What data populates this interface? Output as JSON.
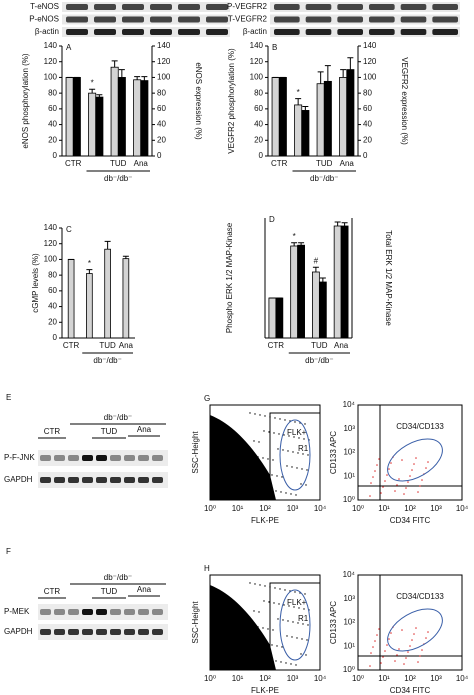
{
  "chart_data": [
    {
      "type": "bar",
      "letter": "A",
      "ylabel": "eNOS phosphorylation (%)",
      "y2label": "eNOS expression (%)",
      "categories": [
        "CTR",
        null,
        "TUD",
        "Ana"
      ],
      "group_label": "db⁻/db⁻",
      "series": [
        {
          "color": "#d4d4d4",
          "values": [
            100,
            80,
            113,
            97
          ],
          "errors": [
            0,
            5,
            8,
            4
          ]
        },
        {
          "color": "#000000",
          "axis": "y2",
          "values": [
            100,
            75,
            100,
            96
          ],
          "errors": [
            0,
            3,
            10,
            5
          ]
        }
      ],
      "ylim": [
        0,
        140
      ],
      "yticks": [
        0,
        20,
        40,
        60,
        80,
        100,
        120,
        140
      ],
      "y2lim": [
        0,
        140
      ],
      "y2ticks": [
        0,
        20,
        40,
        60,
        80,
        100,
        120,
        140
      ],
      "annotations": [
        {
          "text": "*",
          "series": 0,
          "index": 1
        }
      ]
    },
    {
      "type": "bar",
      "letter": "B",
      "ylabel": "VEGFR2 phosphorylation (%)",
      "y2label": "VEGFR2 expression (%)",
      "categories": [
        "CTR",
        null,
        "TUD",
        "Ana"
      ],
      "group_label": "db⁻/db⁻",
      "series": [
        {
          "color": "#d4d4d4",
          "values": [
            100,
            65,
            92,
            100
          ],
          "errors": [
            0,
            8,
            15,
            10
          ]
        },
        {
          "color": "#000000",
          "axis": "y2",
          "values": [
            100,
            58,
            95,
            110
          ],
          "errors": [
            0,
            5,
            20,
            15
          ]
        }
      ],
      "ylim": [
        0,
        140
      ],
      "yticks": [
        0,
        20,
        40,
        60,
        80,
        100,
        120,
        140
      ],
      "y2lim": [
        0,
        140
      ],
      "y2ticks": [
        0,
        20,
        40,
        60,
        80,
        100,
        120,
        140
      ],
      "annotations": [
        {
          "text": "*",
          "series": 0,
          "index": 1
        }
      ]
    },
    {
      "type": "bar",
      "letter": "C",
      "ylabel": "cGMP levels (%)",
      "categories": [
        "CTR",
        null,
        "TUD",
        "Ana"
      ],
      "group_label": "db⁻/db⁻",
      "series": [
        {
          "color": "#d4d4d4",
          "values": [
            100,
            82,
            113,
            101
          ],
          "errors": [
            0,
            5,
            10,
            3
          ]
        }
      ],
      "ylim": [
        0,
        140
      ],
      "yticks": [
        0,
        20,
        40,
        60,
        80,
        100,
        120,
        140
      ],
      "annotations": [
        {
          "text": "*",
          "series": 0,
          "index": 1
        }
      ]
    },
    {
      "type": "bar",
      "letter": "D",
      "ylabel": "Phospho ERK 1/2 MAP-Kinase",
      "y2label": "Total ERK 1/2 MAP-Kinase",
      "categories": [
        "CTR",
        null,
        "TUD",
        "Ana"
      ],
      "group_label": "db⁻/db⁻",
      "series": [
        {
          "color": "#d4d4d4",
          "values": [
            100,
            230,
            165,
            280
          ],
          "errors": [
            0,
            8,
            12,
            10
          ]
        },
        {
          "color": "#000000",
          "axis": "y2",
          "values": [
            100,
            232,
            140,
            280
          ],
          "errors": [
            0,
            6,
            10,
            8
          ]
        }
      ],
      "ylim": [
        0,
        300
      ],
      "y2lim": [
        0,
        300
      ],
      "annotations": [
        {
          "text": "*",
          "series": 0,
          "index": 1
        },
        {
          "text": "#",
          "series": 0,
          "index": 2
        }
      ]
    }
  ],
  "top_blots": [
    {
      "labels": [
        "T-eNOS",
        "P-eNOS",
        "β-actin"
      ]
    },
    {
      "labels": [
        "P-VEGFR2",
        "T-VEGFR2",
        "β-actin"
      ]
    }
  ],
  "blots": [
    {
      "letter": "E",
      "groups": [
        "CTR",
        "db⁻/db⁻",
        "TUD",
        "Ana"
      ],
      "rows": [
        "P-F-JNK",
        "GAPDH"
      ]
    },
    {
      "letter": "F",
      "groups": [
        "CTR",
        "db⁻/db⁻",
        "TUD",
        "Ana"
      ],
      "rows": [
        "P-MEK",
        "GAPDH"
      ]
    }
  ],
  "flow": [
    {
      "letter": "G",
      "scatter": {
        "y_label": "SSC-Height",
        "x_label": "FLK-PE",
        "gate_labels": [
          "FLK+",
          "R1"
        ],
        "xticks": [
          "10⁰",
          "10¹",
          "10²",
          "10³",
          "10⁴"
        ]
      },
      "dot_plot": {
        "y_label": "CD133 APC",
        "x_label": "CD34 FITC",
        "gate_label": "CD34/CD133",
        "ticks": [
          "10⁰",
          "10¹",
          "10²",
          "10³",
          "10⁴"
        ]
      }
    },
    {
      "letter": "H",
      "scatter": {
        "y_label": "SSC-Height",
        "x_label": "FLK-PE",
        "gate_labels": [
          "FLK+",
          "R1"
        ],
        "xticks": [
          "10⁰",
          "10¹",
          "10²",
          "10³",
          "10⁴"
        ]
      },
      "dot_plot": {
        "y_label": "CD133 APC",
        "x_label": "CD34 FITC",
        "gate_label": "CD34/CD133",
        "ticks": [
          "10⁰",
          "10¹",
          "10²",
          "10³",
          "10⁴"
        ]
      }
    }
  ]
}
